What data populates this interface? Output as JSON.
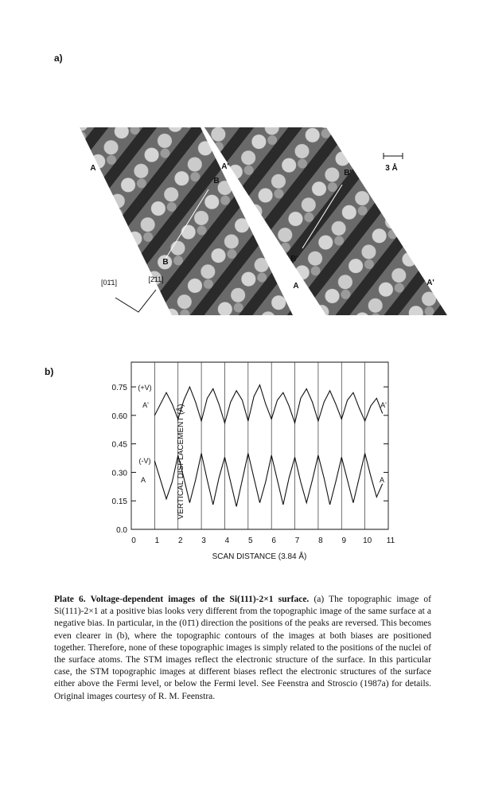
{
  "figure_a": {
    "panel_label": "a)",
    "labels": [
      "A",
      "A'",
      "B",
      "B'",
      "3 Å",
      "B",
      "B'",
      "A",
      "A'",
      "[01̄1]",
      "[2̄11]"
    ]
  },
  "chart_data": {
    "type": "line",
    "panel_label": "b)",
    "x_label": "SCAN DISTANCE (3.84 Å)",
    "y_label": "VERTICAL DISPLACEMENT (Å)",
    "xlim": [
      0,
      11
    ],
    "ylim": [
      0,
      0.88
    ],
    "xticks": [
      0,
      1,
      2,
      3,
      4,
      5,
      6,
      7,
      8,
      9,
      10,
      11
    ],
    "yticks": [
      {
        "value": 0,
        "label": "0.0"
      },
      0.15,
      {
        "value": 0.3,
        "label": "0.30"
      },
      0.45,
      {
        "value": 0.6,
        "label": "0.60"
      },
      0.75
    ],
    "grid": true,
    "annotations": [
      "(+V)",
      "A'",
      "(-V)",
      "A",
      "A'",
      "A"
    ],
    "x": [
      1,
      1.25,
      1.5,
      1.75,
      2,
      2.25,
      2.5,
      2.75,
      3,
      3.25,
      3.5,
      3.75,
      4,
      4.25,
      4.5,
      4.75,
      5,
      5.25,
      5.5,
      5.75,
      6,
      6.25,
      6.5,
      6.75,
      7,
      7.25,
      7.5,
      7.75,
      8,
      8.25,
      8.5,
      8.75,
      9,
      9.25,
      9.5,
      9.75,
      10,
      10.25,
      10.5,
      10.75
    ],
    "series": [
      {
        "color": "#111111",
        "values": [
          0.6,
          0.66,
          0.72,
          0.66,
          0.58,
          0.68,
          0.75,
          0.67,
          0.57,
          0.69,
          0.74,
          0.66,
          0.56,
          0.67,
          0.73,
          0.68,
          0.57,
          0.7,
          0.76,
          0.66,
          0.58,
          0.68,
          0.72,
          0.65,
          0.56,
          0.69,
          0.74,
          0.67,
          0.57,
          0.67,
          0.73,
          0.66,
          0.58,
          0.68,
          0.72,
          0.64,
          0.57,
          0.65,
          0.69,
          0.61
        ]
      },
      {
        "color": "#111111",
        "values": [
          0.36,
          0.26,
          0.16,
          0.25,
          0.39,
          0.27,
          0.14,
          0.26,
          0.4,
          0.26,
          0.13,
          0.27,
          0.38,
          0.25,
          0.12,
          0.26,
          0.4,
          0.27,
          0.14,
          0.25,
          0.39,
          0.26,
          0.13,
          0.27,
          0.38,
          0.25,
          0.14,
          0.26,
          0.39,
          0.27,
          0.13,
          0.25,
          0.38,
          0.26,
          0.14,
          0.27,
          0.4,
          0.28,
          0.17,
          0.24
        ]
      }
    ]
  },
  "caption": {
    "title": "Plate 6. Voltage-dependent images of the Si(111)-2×1 surface.",
    "text": "(a) The topographic image of Si(111)-2×1 at a positive bias looks very different from the topographic image of the same surface at a negative bias. In particular, in the (01̄1) direction the positions of the peaks are reversed. This becomes even clearer in (b), where the topographic contours of the images at both biases are positioned together. Therefore, none of these topographic images is simply related to the positions of the nuclei of the surface atoms. The STM images reflect the electronic structure of the surface. In this particular case, the STM topographic images at different biases reflect the electronic structures of the surface either above the Fermi level, or below the Fermi level. See Feenstra and Stroscio (1987a) for details. Original images courtesy of R. M. Feenstra."
  }
}
